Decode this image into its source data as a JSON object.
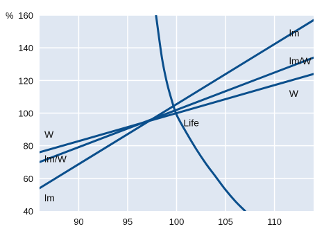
{
  "chart_data": {
    "type": "line",
    "title": "",
    "xlabel": "",
    "ylabel": "",
    "y_unit_label": "%",
    "xlim": [
      86,
      114
    ],
    "ylim": [
      40,
      160
    ],
    "x_ticks": [
      90,
      95,
      100,
      105,
      110
    ],
    "y_ticks": [
      40,
      60,
      80,
      100,
      120,
      140,
      160
    ],
    "grid": true,
    "background_color": "#dfe7f2",
    "grid_color": "#ffffff",
    "line_color": "#0b4f8c",
    "series": [
      {
        "name": "lm",
        "x": [
          86,
          114
        ],
        "y": [
          54,
          157
        ]
      },
      {
        "name": "lm/W",
        "x": [
          86,
          114
        ],
        "y": [
          70,
          134
        ]
      },
      {
        "name": "W",
        "x": [
          86,
          114
        ],
        "y": [
          76,
          124
        ]
      },
      {
        "name": "Life",
        "x": [
          97.9,
          98.5,
          99,
          99.5,
          100,
          101,
          102,
          103,
          104,
          105,
          106,
          107
        ],
        "y": [
          160,
          134,
          119,
          108,
          99,
          88,
          78,
          69,
          61,
          53,
          46,
          40
        ]
      }
    ],
    "annotations": [
      {
        "text": "lm",
        "x": 111.5,
        "y": 147
      },
      {
        "text": "lm/W",
        "x": 111.5,
        "y": 130
      },
      {
        "text": "W",
        "x": 111.5,
        "y": 110
      },
      {
        "text": "Life",
        "x": 100.7,
        "y": 92
      },
      {
        "text": "W",
        "x": 86.5,
        "y": 85
      },
      {
        "text": "lm/W",
        "x": 86.5,
        "y": 70
      },
      {
        "text": "lm",
        "x": 86.5,
        "y": 46
      }
    ]
  }
}
